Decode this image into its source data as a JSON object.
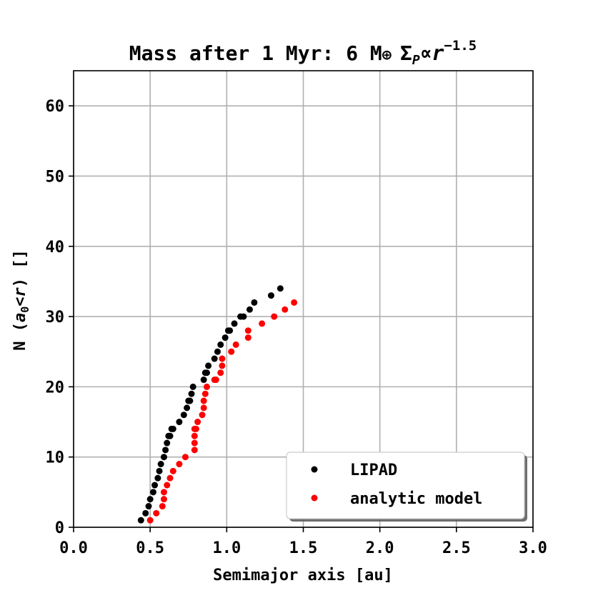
{
  "chart_data": {
    "type": "scatter",
    "title": "Mass after 1 Myr: 6 M⊕ Σ",
    "title_parts": {
      "prefix": "Mass after 1 Myr: 6 M",
      "earth_symbol": "⊕",
      "sigma": "Σ",
      "sigma_sub": "P",
      "propto": "∝",
      "r": "r",
      "exponent": "−1.5"
    },
    "xlabel": "Semimajor axis [au]",
    "ylabel_parts": {
      "prefix": "N (",
      "a": "a",
      "a_sub": "0",
      "lt": "<",
      "r": "r",
      "suffix": ") []"
    },
    "xlim": [
      0.0,
      3.0
    ],
    "ylim": [
      0,
      65
    ],
    "xticks": [
      "0.0",
      "0.5",
      "1.0",
      "1.5",
      "2.0",
      "2.5",
      "3.0"
    ],
    "yticks": [
      "0",
      "10",
      "20",
      "30",
      "40",
      "50",
      "60"
    ],
    "grid": true,
    "legend_position": "bottom-right",
    "series": [
      {
        "name": "LIPAD",
        "color": "#000000",
        "x": [
          0.44,
          0.47,
          0.49,
          0.5,
          0.52,
          0.53,
          0.55,
          0.56,
          0.57,
          0.59,
          0.6,
          0.61,
          0.62,
          0.63,
          0.64,
          0.65,
          0.69,
          0.72,
          0.74,
          0.75,
          0.76,
          0.77,
          0.78,
          0.85,
          0.86,
          0.87,
          0.88,
          0.92,
          0.94,
          0.96,
          0.99,
          1.01,
          1.02,
          1.05,
          1.09,
          1.11,
          1.15,
          1.18,
          1.29,
          1.35
        ],
        "y": [
          1,
          2,
          3,
          4,
          5,
          6,
          7,
          8,
          9,
          10,
          11,
          12,
          13,
          13,
          14,
          14,
          15,
          16,
          17,
          18,
          18,
          19,
          20,
          21,
          22,
          22,
          23,
          24,
          25,
          26,
          27,
          28,
          28,
          29,
          30,
          30,
          31,
          32,
          33,
          34
        ]
      },
      {
        "name": "analytic model",
        "color": "#ff0000",
        "x": [
          0.5,
          0.54,
          0.58,
          0.59,
          0.59,
          0.61,
          0.63,
          0.65,
          0.69,
          0.73,
          0.79,
          0.79,
          0.79,
          0.8,
          0.79,
          0.81,
          0.84,
          0.85,
          0.85,
          0.86,
          0.87,
          0.92,
          0.93,
          0.96,
          0.97,
          0.97,
          1.03,
          1.06,
          1.14,
          1.14,
          1.23,
          1.31,
          1.38,
          1.44
        ],
        "y": [
          1,
          2,
          3,
          4,
          5,
          6,
          7,
          8,
          9,
          10,
          11,
          12,
          13,
          14,
          14,
          15,
          16,
          17,
          18,
          19,
          20,
          21,
          21,
          22,
          23,
          24,
          25,
          26,
          27,
          28,
          29,
          30,
          31,
          32
        ]
      }
    ]
  }
}
